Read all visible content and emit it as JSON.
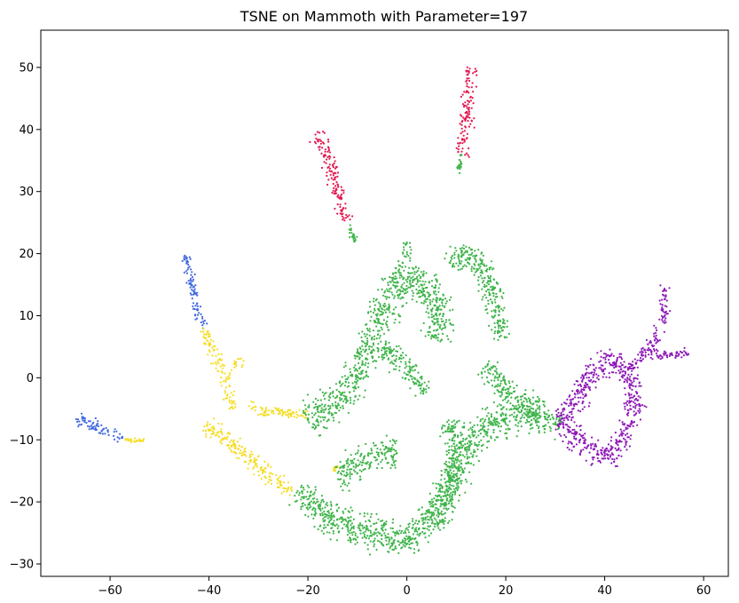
{
  "chart_data": {
    "type": "scatter",
    "title": "TSNE on Mammoth with Parameter=197",
    "xlabel": "",
    "ylabel": "",
    "xlim": [
      -74,
      65
    ],
    "ylim": [
      -32,
      56
    ],
    "xticks": [
      -60,
      -40,
      -20,
      0,
      20,
      40,
      60
    ],
    "yticks": [
      -30,
      -20,
      -10,
      0,
      10,
      20,
      30,
      40,
      50
    ],
    "grid": false,
    "legend": "none",
    "colors": {
      "blue": "#4169e1",
      "yellow": "#f6dd25",
      "green": "#3fb44a",
      "red": "#e3184f",
      "purple": "#8e19b7"
    },
    "clusters": [
      {
        "color": "red",
        "path": [
          [
            -19,
            39
          ],
          [
            -17,
            38
          ],
          [
            -15,
            33
          ],
          [
            -14,
            30
          ],
          [
            -13,
            27
          ],
          [
            -12,
            25
          ]
        ],
        "width": 2.0
      },
      {
        "color": "green",
        "path": [
          [
            -12,
            25
          ],
          [
            -10.5,
            22
          ]
        ],
        "width": 0.8
      },
      {
        "color": "red",
        "path": [
          [
            13,
            50
          ],
          [
            12.5,
            46
          ],
          [
            12,
            41
          ],
          [
            11.5,
            38
          ],
          [
            11,
            36
          ]
        ],
        "width": 2.0
      },
      {
        "color": "green",
        "path": [
          [
            11,
            36
          ],
          [
            10.5,
            33
          ]
        ],
        "width": 0.6
      },
      {
        "color": "blue",
        "path": [
          [
            -45,
            20
          ],
          [
            -44,
            17
          ],
          [
            -43,
            13
          ],
          [
            -42,
            10
          ],
          [
            -41,
            8
          ]
        ],
        "width": 1.4
      },
      {
        "color": "yellow",
        "path": [
          [
            -41,
            8
          ],
          [
            -39,
            4
          ],
          [
            -37,
            1
          ],
          [
            -36,
            -2
          ],
          [
            -35,
            -5
          ]
        ],
        "width": 1.8
      },
      {
        "color": "yellow",
        "path": [
          [
            -35,
            2
          ],
          [
            -33,
            2.5
          ]
        ],
        "width": 1.2
      },
      {
        "color": "yellow",
        "path": [
          [
            -32,
            -4
          ],
          [
            -30,
            -5.5
          ],
          [
            -26,
            -5.5
          ],
          [
            -22,
            -6
          ],
          [
            -20,
            -6
          ]
        ],
        "width": 1.0
      },
      {
        "color": "yellow",
        "path": [
          [
            -41,
            -8
          ],
          [
            -37,
            -9
          ],
          [
            -34,
            -12
          ],
          [
            -30,
            -14
          ],
          [
            -26,
            -17
          ],
          [
            -23,
            -18
          ]
        ],
        "width": 2.2
      },
      {
        "color": "yellow",
        "path": [
          [
            -15,
            -15
          ],
          [
            -14,
            -14
          ]
        ],
        "width": 0.8
      },
      {
        "color": "blue",
        "path": [
          [
            -67,
            -6.5
          ],
          [
            -64,
            -7.5
          ],
          [
            -60,
            -9
          ],
          [
            -57,
            -10
          ]
        ],
        "width": 1.6
      },
      {
        "color": "yellow",
        "path": [
          [
            -57,
            -10
          ],
          [
            -53,
            -10.2
          ]
        ],
        "width": 0.5
      },
      {
        "color": "green",
        "path": [
          [
            -20,
            -7
          ],
          [
            -15,
            -4
          ],
          [
            -10,
            0
          ],
          [
            -7,
            6
          ],
          [
            -4,
            12
          ],
          [
            0,
            16
          ],
          [
            4,
            15
          ],
          [
            6,
            13
          ],
          [
            7,
            10
          ],
          [
            6,
            6
          ]
        ],
        "width": 4.0
      },
      {
        "color": "green",
        "path": [
          [
            -3,
            15
          ],
          [
            0,
            20
          ],
          [
            0,
            22
          ]
        ],
        "width": 1.5
      },
      {
        "color": "green",
        "path": [
          [
            9,
            18
          ],
          [
            11,
            21
          ],
          [
            15,
            18
          ],
          [
            18,
            12
          ],
          [
            19,
            6
          ]
        ],
        "width": 3.0
      },
      {
        "color": "green",
        "path": [
          [
            -5,
            5
          ],
          [
            -2,
            3
          ],
          [
            2,
            0
          ],
          [
            4,
            -2
          ]
        ],
        "width": 3.0
      },
      {
        "color": "green",
        "path": [
          [
            16,
            2
          ],
          [
            20,
            -2
          ],
          [
            25,
            -5
          ],
          [
            31,
            -8
          ]
        ],
        "width": 3.0
      },
      {
        "color": "green",
        "path": [
          [
            -14,
            -16
          ],
          [
            -10,
            -14
          ],
          [
            -5,
            -12
          ],
          [
            -2,
            -12
          ]
        ],
        "width": 3.5
      },
      {
        "color": "green",
        "path": [
          [
            -22,
            -18
          ],
          [
            -17,
            -22
          ],
          [
            -12,
            -24
          ],
          [
            -6,
            -25
          ],
          [
            0,
            -27
          ],
          [
            5,
            -22
          ],
          [
            9,
            -17
          ],
          [
            12,
            -12
          ],
          [
            15,
            -8
          ],
          [
            18,
            -7
          ],
          [
            23,
            -6
          ],
          [
            28,
            -6
          ]
        ],
        "width": 4.0
      },
      {
        "color": "green",
        "path": [
          [
            8,
            -7
          ],
          [
            10,
            -10
          ],
          [
            10,
            -14
          ],
          [
            8,
            -20
          ],
          [
            6,
            -24
          ]
        ],
        "width": 3.0
      },
      {
        "color": "purple",
        "path": [
          [
            31,
            -7
          ],
          [
            34,
            -4
          ],
          [
            36,
            -1
          ],
          [
            39,
            2
          ],
          [
            42,
            3
          ],
          [
            45,
            0
          ],
          [
            46,
            -4
          ],
          [
            45,
            -8
          ],
          [
            43,
            -11
          ],
          [
            40,
            -13
          ],
          [
            36,
            -11
          ],
          [
            33,
            -9
          ],
          [
            31,
            -7
          ]
        ],
        "width": 3.0
      },
      {
        "color": "purple",
        "path": [
          [
            43,
            1
          ],
          [
            46,
            2
          ],
          [
            48,
            4
          ],
          [
            50,
            6
          ],
          [
            52,
            10
          ],
          [
            52,
            15
          ]
        ],
        "width": 1.6
      },
      {
        "color": "purple",
        "path": [
          [
            48,
            4
          ],
          [
            50,
            3.8
          ],
          [
            54,
            3.8
          ],
          [
            57,
            4.3
          ]
        ],
        "width": 1.2
      }
    ]
  }
}
